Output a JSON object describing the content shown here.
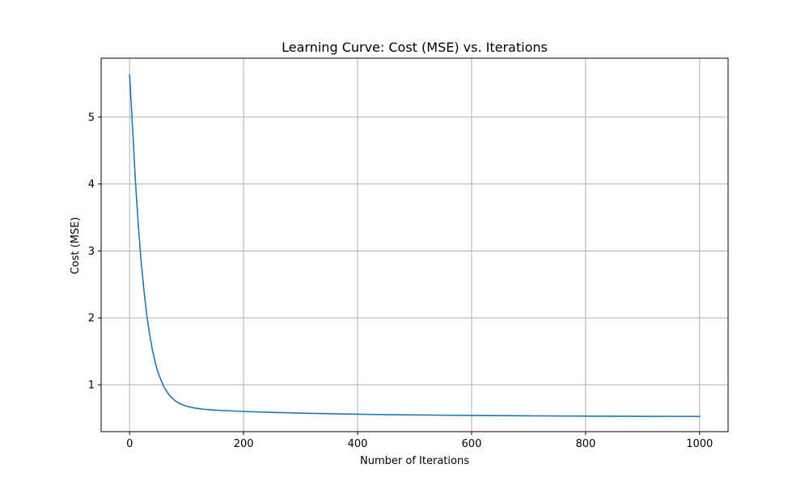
{
  "chart_data": {
    "type": "line",
    "title": "Learning Curve: Cost (MSE) vs. Iterations",
    "xlabel": "Number of Iterations",
    "ylabel": "Cost (MSE)",
    "xlim": [
      -50,
      1050
    ],
    "ylim": [
      0.3,
      5.88
    ],
    "xticks": [
      0,
      200,
      400,
      600,
      800,
      1000
    ],
    "yticks": [
      1,
      2,
      3,
      4,
      5
    ],
    "grid": true,
    "legend": "none",
    "line_color": "#1f77b4",
    "series": [
      {
        "x": [
          0,
          5,
          10,
          15,
          20,
          25,
          30,
          35,
          40,
          45,
          50,
          60,
          70,
          80,
          90,
          100,
          110,
          120,
          130,
          140,
          150,
          175,
          200,
          250,
          300,
          350,
          400,
          450,
          500,
          550,
          600,
          650,
          700,
          750,
          800,
          850,
          900,
          950,
          1000
        ],
        "y": [
          5.63,
          4.87,
          4.07,
          3.41,
          2.86,
          2.42,
          2.05,
          1.76,
          1.52,
          1.33,
          1.18,
          0.97,
          0.84,
          0.76,
          0.71,
          0.68,
          0.66,
          0.645,
          0.635,
          0.628,
          0.621,
          0.611,
          0.602,
          0.588,
          0.577,
          0.568,
          0.561,
          0.555,
          0.55,
          0.546,
          0.542,
          0.539,
          0.536,
          0.534,
          0.532,
          0.53,
          0.529,
          0.528,
          0.527
        ]
      }
    ]
  }
}
